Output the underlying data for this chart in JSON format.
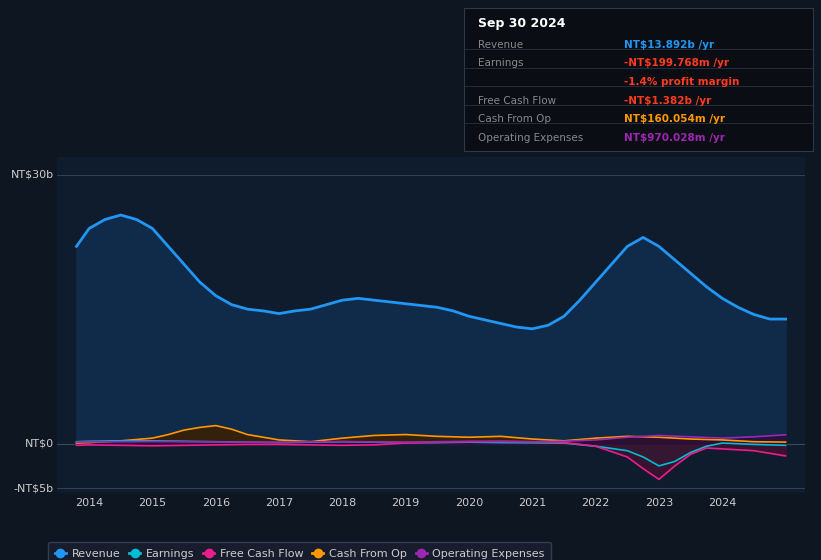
{
  "background_color": "#0e1621",
  "plot_bg_color": "#0e1c2e",
  "ylim": [
    -5500000000,
    32000000000
  ],
  "xlim": [
    2013.5,
    2025.3
  ],
  "xticks": [
    2014,
    2015,
    2016,
    2017,
    2018,
    2019,
    2020,
    2021,
    2022,
    2023,
    2024
  ],
  "zero_line_y": 0,
  "top_line_y": 30000000000,
  "bottom_line_y": -5000000000,
  "series": {
    "Revenue": {
      "color": "#2196f3",
      "fill_color": "#102a4a",
      "lw": 2.0
    },
    "Earnings": {
      "color": "#00bcd4",
      "fill_color": "#003040",
      "lw": 1.2
    },
    "FreeCashFlow": {
      "color": "#e91e8c",
      "fill_color": "#4a1030",
      "lw": 1.2
    },
    "CashFromOp": {
      "color": "#ff9800",
      "fill_color": "#3a2000",
      "lw": 1.2
    },
    "OperatingExpenses": {
      "color": "#9c27b0",
      "fill_color": "#2a0a40",
      "lw": 1.2
    }
  },
  "info_box": {
    "title": "Sep 30 2024",
    "title_color": "#ffffff",
    "bg_color": "#0a0e14",
    "border_color": "#2a3a4a",
    "rows": [
      {
        "label": "Revenue",
        "label_color": "#888888",
        "value": "NT$13.892b /yr",
        "value_color": "#2196f3"
      },
      {
        "label": "Earnings",
        "label_color": "#888888",
        "value": "-NT$199.768m /yr",
        "value_color": "#ff3a20"
      },
      {
        "label": "",
        "label_color": "#888888",
        "value": "-1.4% profit margin",
        "value_color": "#ff3a20"
      },
      {
        "label": "Free Cash Flow",
        "label_color": "#888888",
        "value": "-NT$1.382b /yr",
        "value_color": "#ff3a20"
      },
      {
        "label": "Cash From Op",
        "label_color": "#888888",
        "value": "NT$160.054m /yr",
        "value_color": "#ff9800"
      },
      {
        "label": "Operating Expenses",
        "label_color": "#888888",
        "value": "NT$970.028m /yr",
        "value_color": "#9c27b0"
      }
    ]
  },
  "legend": [
    {
      "label": "Revenue",
      "color": "#2196f3"
    },
    {
      "label": "Earnings",
      "color": "#00bcd4"
    },
    {
      "label": "Free Cash Flow",
      "color": "#e91e8c"
    },
    {
      "label": "Cash From Op",
      "color": "#ff9800"
    },
    {
      "label": "Operating Expenses",
      "color": "#9c27b0"
    }
  ],
  "revenue_x": [
    2013.8,
    2014.0,
    2014.25,
    2014.5,
    2014.75,
    2015.0,
    2015.25,
    2015.5,
    2015.75,
    2016.0,
    2016.25,
    2016.5,
    2016.75,
    2017.0,
    2017.25,
    2017.5,
    2017.75,
    2018.0,
    2018.25,
    2018.5,
    2018.75,
    2019.0,
    2019.25,
    2019.5,
    2019.75,
    2020.0,
    2020.25,
    2020.5,
    2020.75,
    2021.0,
    2021.25,
    2021.5,
    2021.75,
    2022.0,
    2022.25,
    2022.5,
    2022.75,
    2023.0,
    2023.25,
    2023.5,
    2023.75,
    2024.0,
    2024.25,
    2024.5,
    2024.75,
    2025.0
  ],
  "revenue_y": [
    22000000000.0,
    24000000000.0,
    25000000000.0,
    25500000000.0,
    25000000000.0,
    24000000000.0,
    22000000000.0,
    20000000000.0,
    18000000000.0,
    16500000000.0,
    15500000000.0,
    15000000000.0,
    14800000000.0,
    14500000000.0,
    14800000000.0,
    15000000000.0,
    15500000000.0,
    16000000000.0,
    16200000000.0,
    16000000000.0,
    15800000000.0,
    15600000000.0,
    15400000000.0,
    15200000000.0,
    14800000000.0,
    14200000000.0,
    13800000000.0,
    13400000000.0,
    13000000000.0,
    12800000000.0,
    13200000000.0,
    14200000000.0,
    16000000000.0,
    18000000000.0,
    20000000000.0,
    22000000000.0,
    23000000000.0,
    22000000000.0,
    20500000000.0,
    19000000000.0,
    17500000000.0,
    16200000000.0,
    15200000000.0,
    14400000000.0,
    13892000000.0,
    13892000000.0
  ],
  "earnings_x": [
    2013.8,
    2014.0,
    2014.5,
    2015.0,
    2015.5,
    2016.0,
    2016.5,
    2017.0,
    2017.5,
    2018.0,
    2018.5,
    2019.0,
    2019.5,
    2020.0,
    2020.5,
    2021.0,
    2021.5,
    2022.0,
    2022.5,
    2022.75,
    2023.0,
    2023.25,
    2023.5,
    2023.75,
    2024.0,
    2024.5,
    2025.0
  ],
  "earnings_y": [
    200000000.0,
    250000000.0,
    300000000.0,
    300000000.0,
    250000000.0,
    200000000.0,
    150000000.0,
    100000000.0,
    150000000.0,
    200000000.0,
    150000000.0,
    100000000.0,
    100000000.0,
    150000000.0,
    100000000.0,
    80000000.0,
    50000000.0,
    -300000000.0,
    -800000000.0,
    -1500000000.0,
    -2500000000.0,
    -2000000000.0,
    -1000000000.0,
    -300000000.0,
    50000000.0,
    -100000000.0,
    -200000000.0
  ],
  "cashfromop_x": [
    2013.8,
    2014.0,
    2014.5,
    2015.0,
    2015.25,
    2015.5,
    2015.75,
    2016.0,
    2016.25,
    2016.5,
    2017.0,
    2017.5,
    2018.0,
    2018.5,
    2019.0,
    2019.5,
    2020.0,
    2020.5,
    2021.0,
    2021.5,
    2022.0,
    2022.5,
    2023.0,
    2023.5,
    2024.0,
    2024.5,
    2025.0
  ],
  "cashfromop_y": [
    50000000.0,
    100000000.0,
    300000000.0,
    600000000.0,
    1000000000.0,
    1500000000.0,
    1800000000.0,
    2000000000.0,
    1600000000.0,
    1000000000.0,
    400000000.0,
    200000000.0,
    600000000.0,
    900000000.0,
    1000000000.0,
    800000000.0,
    700000000.0,
    800000000.0,
    500000000.0,
    300000000.0,
    600000000.0,
    800000000.0,
    700000000.0,
    500000000.0,
    400000000.0,
    200000000.0,
    160000000.0
  ],
  "freecashflow_x": [
    2013.8,
    2014.0,
    2014.5,
    2015.0,
    2015.5,
    2016.0,
    2016.5,
    2017.0,
    2017.5,
    2018.0,
    2018.5,
    2019.0,
    2019.5,
    2020.0,
    2020.5,
    2021.0,
    2021.5,
    2022.0,
    2022.5,
    2022.75,
    2023.0,
    2023.25,
    2023.5,
    2023.75,
    2024.0,
    2024.5,
    2025.0
  ],
  "freecashflow_y": [
    -200000000.0,
    -150000000.0,
    -200000000.0,
    -250000000.0,
    -200000000.0,
    -150000000.0,
    -100000000.0,
    -100000000.0,
    -150000000.0,
    -200000000.0,
    -150000000.0,
    50000000.0,
    150000000.0,
    200000000.0,
    250000000.0,
    200000000.0,
    100000000.0,
    -300000000.0,
    -1500000000.0,
    -2800000000.0,
    -4000000000.0,
    -2500000000.0,
    -1200000000.0,
    -500000000.0,
    -600000000.0,
    -800000000.0,
    -1382000000.0
  ],
  "opex_x": [
    2013.8,
    2014.0,
    2014.5,
    2015.0,
    2015.5,
    2016.0,
    2016.5,
    2017.0,
    2017.5,
    2018.0,
    2018.5,
    2019.0,
    2019.5,
    2020.0,
    2020.5,
    2021.0,
    2021.5,
    2022.0,
    2022.5,
    2023.0,
    2023.5,
    2024.0,
    2024.5,
    2025.0
  ],
  "opex_y": [
    150000000.0,
    180000000.0,
    200000000.0,
    220000000.0,
    200000000.0,
    180000000.0,
    150000000.0,
    150000000.0,
    180000000.0,
    220000000.0,
    180000000.0,
    150000000.0,
    200000000.0,
    250000000.0,
    220000000.0,
    200000000.0,
    250000000.0,
    400000000.0,
    700000000.0,
    900000000.0,
    750000000.0,
    600000000.0,
    750000000.0,
    970000000.0
  ]
}
